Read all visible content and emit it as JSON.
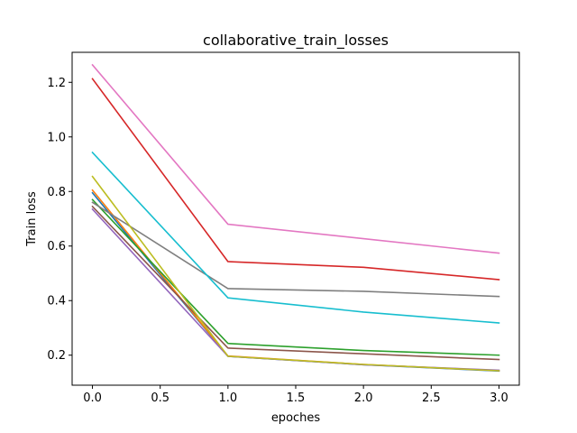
{
  "chart_data": {
    "type": "line",
    "title": "collaborative_train_losses",
    "xlabel": "epoches",
    "ylabel": "Train loss",
    "xlim": [
      -0.15,
      3.15
    ],
    "ylim": [
      0.09,
      1.31
    ],
    "grid": false,
    "legend": "none",
    "x": [
      0,
      1,
      2,
      3
    ],
    "x_ticks": [
      0.0,
      0.5,
      1.0,
      1.5,
      2.0,
      2.5,
      3.0
    ],
    "x_tick_labels": [
      "0.0",
      "0.5",
      "1.0",
      "1.5",
      "2.0",
      "2.5",
      "3.0"
    ],
    "y_ticks": [
      0.2,
      0.4,
      0.6,
      0.8,
      1.0,
      1.2
    ],
    "y_tick_labels": [
      "0.2",
      "0.4",
      "0.6",
      "0.8",
      "1.0",
      "1.2"
    ],
    "series": [
      {
        "color": "#1f77b4",
        "values": [
          0.795,
          0.196,
          0.165,
          0.142
        ]
      },
      {
        "color": "#ff7f0e",
        "values": [
          0.805,
          0.197,
          0.166,
          0.143
        ]
      },
      {
        "color": "#2ca02c",
        "values": [
          0.77,
          0.243,
          0.217,
          0.2
        ]
      },
      {
        "color": "#d62728",
        "values": [
          1.213,
          0.543,
          0.522,
          0.477
        ]
      },
      {
        "color": "#9467bd",
        "values": [
          0.735,
          0.196,
          0.165,
          0.145
        ]
      },
      {
        "color": "#8c564b",
        "values": [
          0.745,
          0.226,
          0.205,
          0.184
        ]
      },
      {
        "color": "#e377c2",
        "values": [
          1.264,
          0.68,
          0.627,
          0.574
        ]
      },
      {
        "color": "#7f7f7f",
        "values": [
          0.76,
          0.444,
          0.434,
          0.415
        ]
      },
      {
        "color": "#bcbd22",
        "values": [
          0.855,
          0.196,
          0.166,
          0.143
        ]
      },
      {
        "color": "#17becf",
        "values": [
          0.943,
          0.41,
          0.358,
          0.318
        ]
      }
    ]
  }
}
